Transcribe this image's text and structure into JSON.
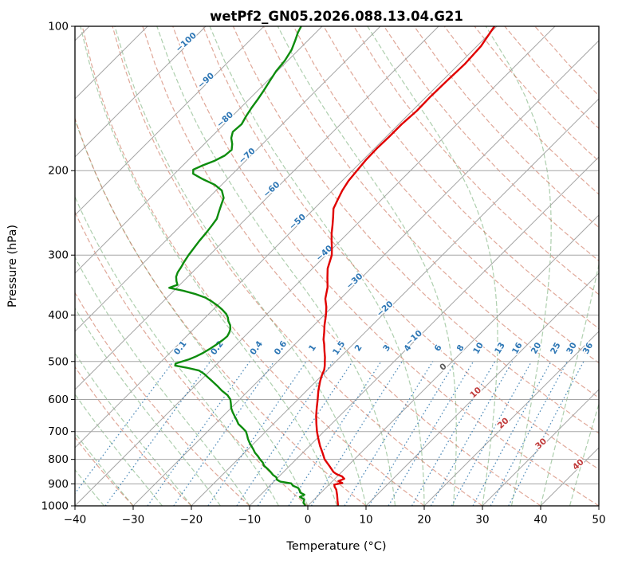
{
  "title": "wetPf2_GN05.2026.088.13.04.G21",
  "colors": {
    "grid_gray": "#a6a6a6",
    "dry_adiabat": "rgba(198,96,70,0.55)",
    "moist_adiabat": "rgba(76,148,76,0.45)",
    "mixing_ratio": "rgba(42,115,170,0.8)",
    "temperature_line": "#e00000",
    "dewpoint_line": "#0d8c0d",
    "frame": "#000000",
    "isotherm_label_cold": "#2e77b5",
    "isotherm_label_zero": "#5a5a5a",
    "isotherm_label_warm": "#c03a3a"
  },
  "chart_data": {
    "type": "line",
    "variant": "skew-t-log-p-sounding",
    "title": "wetPf2_GN05.2026.088.13.04.G21",
    "xlabel": "Temperature (°C)",
    "ylabel": "Pressure (hPa)",
    "xlim": [
      -40,
      50
    ],
    "pressure_lim": [
      1000,
      100
    ],
    "pressure_log_scale": true,
    "skew_degrees": 45,
    "grid": true,
    "x_ticks": [
      -40,
      -30,
      -20,
      -10,
      0,
      10,
      20,
      30,
      40,
      50
    ],
    "pressure_ticks": [
      100,
      200,
      300,
      400,
      500,
      600,
      700,
      800,
      900,
      1000
    ],
    "isotherm_interval_c": 10,
    "isotherm_labels": [
      {
        "t": -100,
        "p": 109,
        "color": "#2e77b5"
      },
      {
        "t": -90,
        "p": 131,
        "color": "#2e77b5"
      },
      {
        "t": -80,
        "p": 158,
        "color": "#2e77b5"
      },
      {
        "t": -70,
        "p": 188,
        "color": "#2e77b5"
      },
      {
        "t": -60,
        "p": 221,
        "color": "#2e77b5"
      },
      {
        "t": -50,
        "p": 258,
        "color": "#2e77b5"
      },
      {
        "t": -40,
        "p": 300,
        "color": "#2e77b5"
      },
      {
        "t": -30,
        "p": 343,
        "color": "#2e77b5"
      },
      {
        "t": -20,
        "p": 392,
        "color": "#2e77b5"
      },
      {
        "t": -10,
        "p": 451,
        "color": "#2e77b5"
      },
      {
        "t": 0,
        "p": 518,
        "color": "#5a5a5a"
      },
      {
        "t": 10,
        "p": 586,
        "color": "#c03a3a"
      },
      {
        "t": 20,
        "p": 679,
        "color": "#c03a3a"
      },
      {
        "t": 30,
        "p": 749,
        "color": "#c03a3a"
      },
      {
        "t": 40,
        "p": 828,
        "color": "#c03a3a"
      }
    ],
    "mixing_ratio_lines_g_per_kg": [
      0.1,
      0.2,
      0.4,
      0.6,
      1,
      1.5,
      2,
      3,
      4,
      6,
      8,
      10,
      13,
      16,
      20,
      25,
      30,
      36
    ],
    "mixing_ratio_label_pressure": 472,
    "dry_adiabats_theta_c": {
      "start": -30,
      "end": 170,
      "step": 10
    },
    "moist_adiabats_t0_c": {
      "start": -55,
      "end": 50,
      "step": 5
    },
    "series": [
      {
        "name": "temperature",
        "color": "#e00000",
        "points_p_t": [
          [
            1000,
            5.2
          ],
          [
            975,
            4.2
          ],
          [
            950,
            3.2
          ],
          [
            925,
            2.1
          ],
          [
            912,
            1.3
          ],
          [
            903,
            0.9
          ],
          [
            896,
            2.0
          ],
          [
            888,
            1.0
          ],
          [
            878,
            1.6
          ],
          [
            868,
            0.8
          ],
          [
            858,
            -0.6
          ],
          [
            850,
            -1.4
          ],
          [
            825,
            -3.2
          ],
          [
            800,
            -5.1
          ],
          [
            775,
            -6.6
          ],
          [
            750,
            -8.2
          ],
          [
            725,
            -9.7
          ],
          [
            700,
            -11.2
          ],
          [
            675,
            -12.6
          ],
          [
            650,
            -14.0
          ],
          [
            625,
            -15.3
          ],
          [
            600,
            -16.6
          ],
          [
            575,
            -18.0
          ],
          [
            550,
            -19.3
          ],
          [
            535,
            -20.0
          ],
          [
            520,
            -20.6
          ],
          [
            510,
            -21.2
          ],
          [
            500,
            -21.9
          ],
          [
            490,
            -22.6
          ],
          [
            475,
            -23.8
          ],
          [
            460,
            -25.0
          ],
          [
            450,
            -25.9
          ],
          [
            435,
            -27.0
          ],
          [
            420,
            -28.2
          ],
          [
            400,
            -29.7
          ],
          [
            385,
            -31.0
          ],
          [
            370,
            -32.6
          ],
          [
            350,
            -34.2
          ],
          [
            335,
            -35.8
          ],
          [
            320,
            -37.4
          ],
          [
            300,
            -39.0
          ],
          [
            290,
            -40.2
          ],
          [
            280,
            -41.5
          ],
          [
            270,
            -42.8
          ],
          [
            260,
            -44.0
          ],
          [
            250,
            -45.3
          ],
          [
            240,
            -46.7
          ],
          [
            230,
            -47.5
          ],
          [
            220,
            -48.3
          ],
          [
            210,
            -48.9
          ],
          [
            200,
            -49.2
          ],
          [
            190,
            -49.5
          ],
          [
            180,
            -49.6
          ],
          [
            170,
            -49.5
          ],
          [
            160,
            -49.5
          ],
          [
            150,
            -49.2
          ],
          [
            140,
            -49.3
          ],
          [
            130,
            -49.2
          ],
          [
            120,
            -49.0
          ],
          [
            110,
            -49.3
          ],
          [
            100,
            -50.4
          ]
        ]
      },
      {
        "name": "dewpoint",
        "color": "#0d8c0d",
        "points_p_t": [
          [
            1000,
            -0.4
          ],
          [
            985,
            -1.3
          ],
          [
            970,
            -1.7
          ],
          [
            958,
            -2.9
          ],
          [
            948,
            -2.5
          ],
          [
            938,
            -3.6
          ],
          [
            928,
            -4.1
          ],
          [
            918,
            -4.7
          ],
          [
            908,
            -6.0
          ],
          [
            898,
            -6.7
          ],
          [
            890,
            -8.9
          ],
          [
            882,
            -9.8
          ],
          [
            872,
            -10.3
          ],
          [
            862,
            -11.3
          ],
          [
            850,
            -12.2
          ],
          [
            838,
            -13.2
          ],
          [
            825,
            -14.4
          ],
          [
            812,
            -15.2
          ],
          [
            800,
            -16.2
          ],
          [
            788,
            -17.1
          ],
          [
            775,
            -18.2
          ],
          [
            762,
            -19.1
          ],
          [
            750,
            -20.0
          ],
          [
            738,
            -20.9
          ],
          [
            725,
            -21.8
          ],
          [
            712,
            -22.6
          ],
          [
            700,
            -23.4
          ],
          [
            688,
            -24.6
          ],
          [
            675,
            -26.0
          ],
          [
            662,
            -27.0
          ],
          [
            650,
            -28.0
          ],
          [
            638,
            -29.0
          ],
          [
            625,
            -30.0
          ],
          [
            612,
            -30.8
          ],
          [
            600,
            -31.6
          ],
          [
            588,
            -32.8
          ],
          [
            575,
            -34.6
          ],
          [
            562,
            -36.2
          ],
          [
            550,
            -37.8
          ],
          [
            540,
            -39.2
          ],
          [
            530,
            -40.6
          ],
          [
            522,
            -42.0
          ],
          [
            515,
            -44.6
          ],
          [
            510,
            -46.9
          ],
          [
            505,
            -47.2
          ],
          [
            500,
            -46.4
          ],
          [
            495,
            -45.6
          ],
          [
            488,
            -44.9
          ],
          [
            480,
            -44.3
          ],
          [
            470,
            -43.8
          ],
          [
            460,
            -43.4
          ],
          [
            450,
            -43.1
          ],
          [
            443,
            -43.0
          ],
          [
            435,
            -43.3
          ],
          [
            428,
            -43.7
          ],
          [
            420,
            -44.4
          ],
          [
            412,
            -45.4
          ],
          [
            405,
            -46.1
          ],
          [
            398,
            -47.0
          ],
          [
            390,
            -48.4
          ],
          [
            382,
            -50.0
          ],
          [
            375,
            -51.6
          ],
          [
            368,
            -53.4
          ],
          [
            362,
            -55.6
          ],
          [
            356,
            -58.4
          ],
          [
            351,
            -61.3
          ],
          [
            346,
            -60.4
          ],
          [
            340,
            -61.2
          ],
          [
            333,
            -62.0
          ],
          [
            326,
            -62.5
          ],
          [
            318,
            -62.8
          ],
          [
            310,
            -63.2
          ],
          [
            300,
            -63.6
          ],
          [
            290,
            -63.9
          ],
          [
            280,
            -64.2
          ],
          [
            270,
            -64.4
          ],
          [
            260,
            -64.7
          ],
          [
            252,
            -65.0
          ],
          [
            244,
            -65.8
          ],
          [
            236,
            -66.6
          ],
          [
            228,
            -67.4
          ],
          [
            220,
            -69.0
          ],
          [
            214,
            -71.2
          ],
          [
            208,
            -74.4
          ],
          [
            203,
            -76.8
          ],
          [
            199,
            -77.5
          ],
          [
            195,
            -76.6
          ],
          [
            191,
            -75.4
          ],
          [
            186,
            -74.5
          ],
          [
            181,
            -74.3
          ],
          [
            176,
            -75.2
          ],
          [
            171,
            -76.4
          ],
          [
            166,
            -77.2
          ],
          [
            160,
            -77.0
          ],
          [
            154,
            -77.6
          ],
          [
            148,
            -78.1
          ],
          [
            142,
            -78.5
          ],
          [
            136,
            -79.0
          ],
          [
            130,
            -79.6
          ],
          [
            124,
            -80.2
          ],
          [
            118,
            -80.5
          ],
          [
            112,
            -81.2
          ],
          [
            107,
            -82.2
          ],
          [
            103,
            -83.1
          ],
          [
            100,
            -83.6
          ]
        ]
      }
    ]
  }
}
